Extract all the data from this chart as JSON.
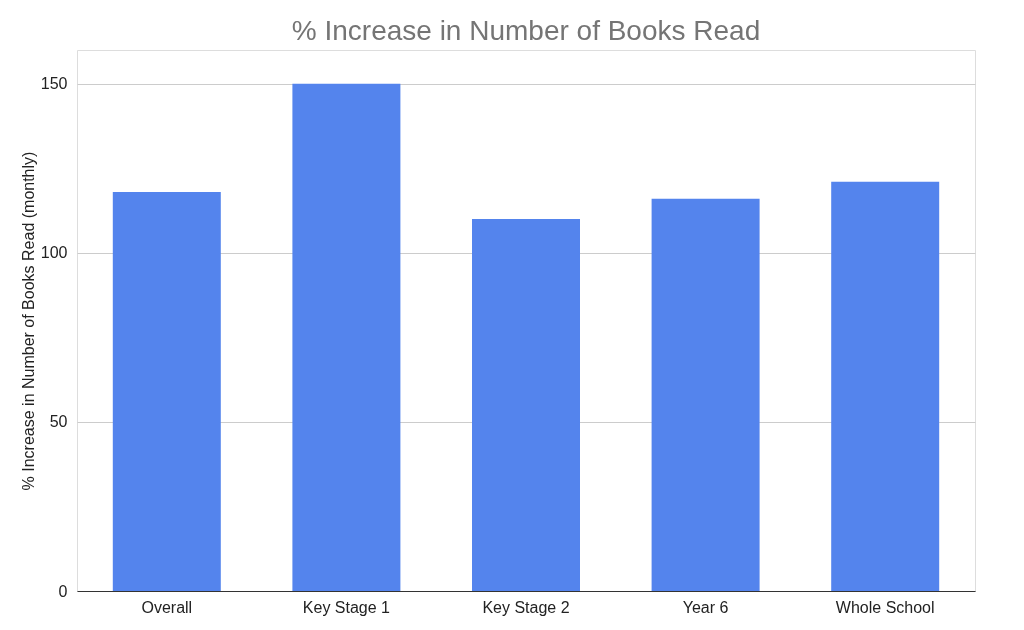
{
  "chart_data": {
    "type": "bar",
    "title": "% Increase in Number of Books Read",
    "ylabel": "% Increase in Number of Books Read (monthly)",
    "categories": [
      "Overall",
      "Key Stage 1",
      "Key Stage 2",
      "Year 6",
      "Whole School"
    ],
    "values": [
      118,
      150,
      110,
      116,
      121
    ],
    "color": "#5484ed",
    "ylim": [
      0,
      160
    ],
    "yticks": [
      0,
      50,
      100,
      150
    ],
    "grid": "y"
  }
}
